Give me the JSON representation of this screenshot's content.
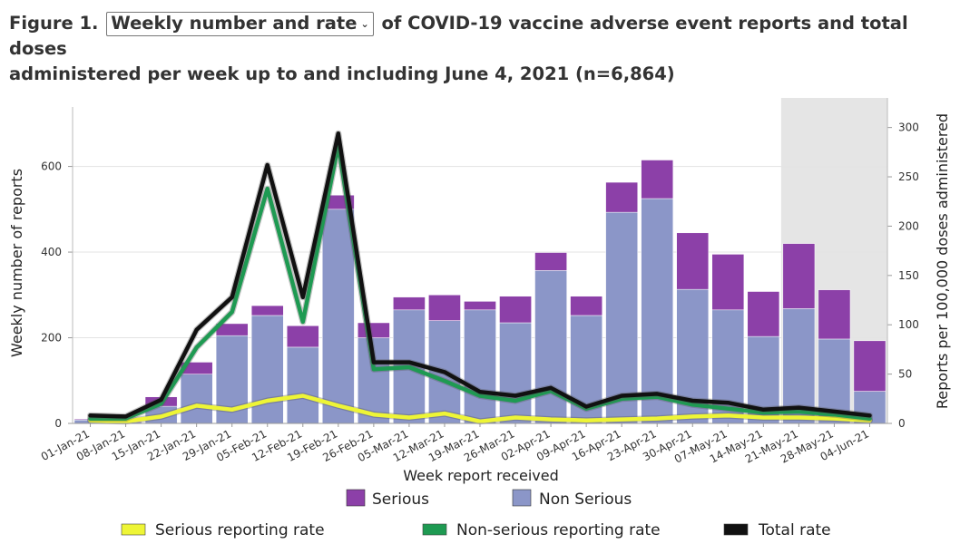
{
  "title": {
    "prefix": "Figure 1.",
    "selector_value": "Weekly number and rate",
    "suffix_line1": "of COVID-19 vaccine adverse event reports and total doses",
    "line2": "administered per week up to and including June 4, 2021 (n=6,864)"
  },
  "chart_data": {
    "type": "bar",
    "stacked": true,
    "categories": [
      "01-Jan-21",
      "08-Jan-21",
      "15-Jan-21",
      "22-Jan-21",
      "29-Jan-21",
      "05-Feb-21",
      "12-Feb-21",
      "19-Feb-21",
      "26-Feb-21",
      "05-Mar-21",
      "12-Mar-21",
      "19-Mar-21",
      "26-Mar-21",
      "02-Apr-21",
      "09-Apr-21",
      "16-Apr-21",
      "23-Apr-21",
      "30-Apr-21",
      "07-May-21",
      "14-May-21",
      "21-May-21",
      "28-May-21",
      "04-Jun-21"
    ],
    "xlabel": "Week report received",
    "ylabel": "Weekly number of reports",
    "y2label": "Reports per 100,000 doses administered",
    "ylim": [
      0,
      760
    ],
    "y2lim": [
      0,
      330
    ],
    "yticks": [
      0,
      200,
      400,
      600
    ],
    "y2ticks": [
      0,
      50,
      100,
      150,
      200,
      250,
      300
    ],
    "shaded_from": "21-May-21",
    "bar_series": [
      {
        "name": "Non Serious",
        "color": "#8b96c8",
        "values": [
          8,
          3,
          40,
          115,
          205,
          252,
          178,
          500,
          200,
          265,
          240,
          265,
          235,
          357,
          252,
          493,
          525,
          313,
          265,
          203,
          268,
          197,
          75
        ]
      },
      {
        "name": "Serious",
        "color": "#8c40a8",
        "values": [
          2,
          2,
          22,
          28,
          28,
          23,
          50,
          33,
          35,
          30,
          60,
          20,
          62,
          42,
          45,
          70,
          90,
          132,
          130,
          105,
          152,
          115,
          118
        ]
      }
    ],
    "line_series": [
      {
        "name": "Serious reporting rate",
        "color": "#eef536",
        "values": [
          3,
          2,
          7,
          18,
          14,
          23,
          28,
          18,
          9,
          6,
          10,
          2,
          6,
          4,
          3,
          4,
          5,
          7,
          8,
          6,
          6,
          5,
          3
        ]
      },
      {
        "name": "Non-serious reporting rate",
        "color": "#1e9a52",
        "values": [
          5,
          5,
          20,
          77,
          113,
          238,
          103,
          282,
          55,
          57,
          43,
          28,
          23,
          33,
          15,
          25,
          27,
          19,
          15,
          11,
          12,
          9,
          5
        ]
      },
      {
        "name": "Total rate",
        "color": "#111111",
        "values": [
          8,
          7,
          24,
          95,
          128,
          262,
          128,
          294,
          62,
          62,
          52,
          32,
          28,
          36,
          17,
          28,
          30,
          23,
          21,
          14,
          16,
          12,
          8
        ]
      }
    ]
  },
  "legend": {
    "serious": "Serious",
    "non_serious": "Non Serious",
    "serious_rate": "Serious reporting rate",
    "non_serious_rate": "Non-serious reporting rate",
    "total_rate": "Total rate"
  }
}
